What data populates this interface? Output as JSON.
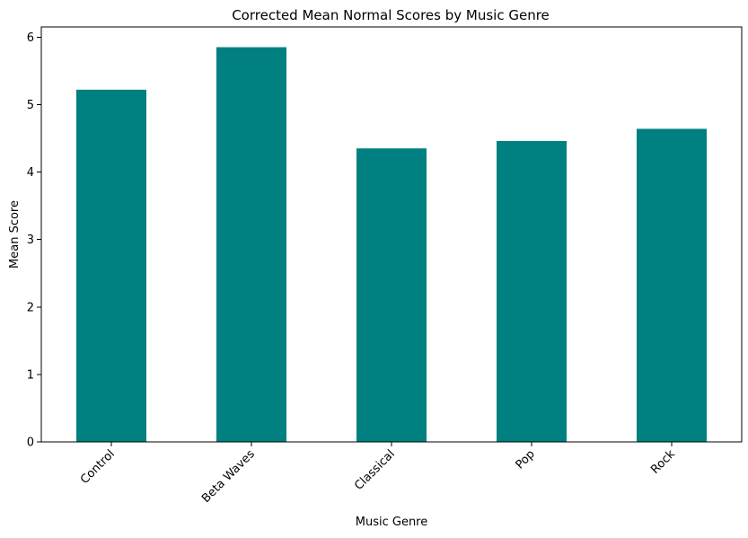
{
  "chart_data": {
    "type": "bar",
    "title": "Corrected Mean Normal Scores by Music Genre",
    "xlabel": "Music Genre",
    "ylabel": "Mean Score",
    "categories": [
      "Control",
      "Beta Waves",
      "Classical",
      "Pop",
      "Rock"
    ],
    "values": [
      5.22,
      5.85,
      4.35,
      4.46,
      4.64
    ],
    "ylim": [
      0,
      6.15
    ],
    "yticks": [
      "0",
      "1",
      "2",
      "3",
      "4",
      "5",
      "6"
    ],
    "x_tick_rotation_deg": 45,
    "grid": false,
    "legend": "none",
    "bar_color": "#008080"
  }
}
